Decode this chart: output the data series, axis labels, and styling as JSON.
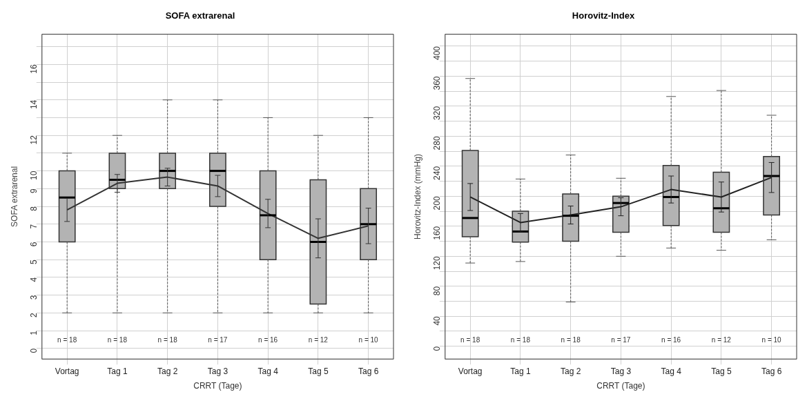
{
  "chart_data": [
    {
      "type": "box",
      "title": "SOFA extrarenal",
      "xlabel": "CRRT (Tage)",
      "ylabel": "SOFA extrarenal",
      "categories": [
        "Vortag",
        "Tag 1",
        "Tag 2",
        "Tag 3",
        "Tag 4",
        "Tag 5",
        "Tag 6"
      ],
      "ylim": [
        -0.6,
        17.7
      ],
      "yticks": [
        0,
        1,
        2,
        3,
        4,
        5,
        6,
        7,
        8,
        9,
        10,
        {
          "value": 11,
          "label": null
        },
        12,
        {
          "value": 13,
          "label": null
        },
        14,
        {
          "value": 15,
          "label": null
        },
        16,
        {
          "value": 17,
          "label": null
        }
      ],
      "grid": true,
      "marker": "none",
      "series": [
        {
          "type": "box",
          "color": "#b3b3b3",
          "boxes": [
            {
              "low": 2,
              "q1": 6,
              "median": 8.5,
              "q3": 10,
              "high": 11
            },
            {
              "low": 2,
              "q1": 9,
              "median": 9.5,
              "q3": 11,
              "high": 12
            },
            {
              "low": 2,
              "q1": 9,
              "median": 10,
              "q3": 11,
              "high": 14
            },
            {
              "low": 2,
              "q1": 8,
              "median": 10,
              "q3": 11,
              "high": 14
            },
            {
              "low": 2,
              "q1": 5,
              "median": 7.5,
              "q3": 10,
              "high": 13
            },
            {
              "low": 2,
              "q1": 2.5,
              "median": 6,
              "q3": 9.5,
              "high": 12
            },
            {
              "low": 2,
              "q1": 5,
              "median": 7,
              "q3": 9,
              "high": 13
            }
          ]
        },
        {
          "type": "line",
          "color": "#333333",
          "values": [
            7.8,
            9.3,
            9.65,
            9.15,
            7.6,
            6.2,
            6.9
          ],
          "errors": [
            0.65,
            0.5,
            0.5,
            0.6,
            0.8,
            1.1,
            1
          ]
        }
      ],
      "annotations": [
        "n = 18",
        "n = 18",
        "n = 18",
        "n = 17",
        "n = 16",
        "n = 12",
        "n = 10"
      ]
    },
    {
      "type": "box",
      "title": "Horovitz-Index",
      "xlabel": "CRRT (Tage)",
      "ylabel": "Horovitz-Index (mmHg)",
      "categories": [
        "Vortag",
        "Tag 1",
        "Tag 2",
        "Tag 3",
        "Tag 4",
        "Tag 5",
        "Tag 6"
      ],
      "ylim": [
        -17,
        416
      ],
      "yticks": [
        0,
        {
          "value": 20,
          "label": null
        },
        40,
        {
          "value": 60,
          "label": null
        },
        80,
        {
          "value": 100,
          "label": null
        },
        120,
        {
          "value": 140,
          "label": null
        },
        160,
        {
          "value": 180,
          "label": null
        },
        200,
        {
          "value": 220,
          "label": null
        },
        240,
        {
          "value": 260,
          "label": null
        },
        280,
        {
          "value": 300,
          "label": null
        },
        320,
        {
          "value": 340,
          "label": null
        },
        360,
        {
          "value": 380,
          "label": null
        },
        400
      ],
      "grid": true,
      "marker": "none",
      "series": [
        {
          "type": "box",
          "color": "#b3b3b3",
          "boxes": [
            {
              "low": 111,
              "q1": 146,
              "median": 171,
              "q3": 261,
              "high": 357
            },
            {
              "low": 113,
              "q1": 139,
              "median": 153,
              "q3": 180,
              "high": 223
            },
            {
              "low": 59,
              "q1": 140,
              "median": 174,
              "q3": 203,
              "high": 255
            },
            {
              "low": 120,
              "q1": 152,
              "median": 191,
              "q3": 200,
              "high": 224
            },
            {
              "low": 131,
              "q1": 161,
              "median": 199,
              "q3": 241,
              "high": 333
            },
            {
              "low": 128,
              "q1": 152,
              "median": 184,
              "q3": 232,
              "high": 341
            },
            {
              "low": 142,
              "q1": 175,
              "median": 227,
              "q3": 253,
              "high": 308
            }
          ]
        },
        {
          "type": "line",
          "color": "#222222",
          "values": [
            199,
            165,
            175,
            186,
            209,
            199,
            225
          ],
          "errors": [
            18,
            12,
            12,
            12,
            18,
            20,
            20
          ]
        }
      ],
      "annotations": [
        "n = 18",
        "n = 18",
        "n = 18",
        "n = 17",
        "n = 16",
        "n = 12",
        "n = 10"
      ]
    }
  ]
}
